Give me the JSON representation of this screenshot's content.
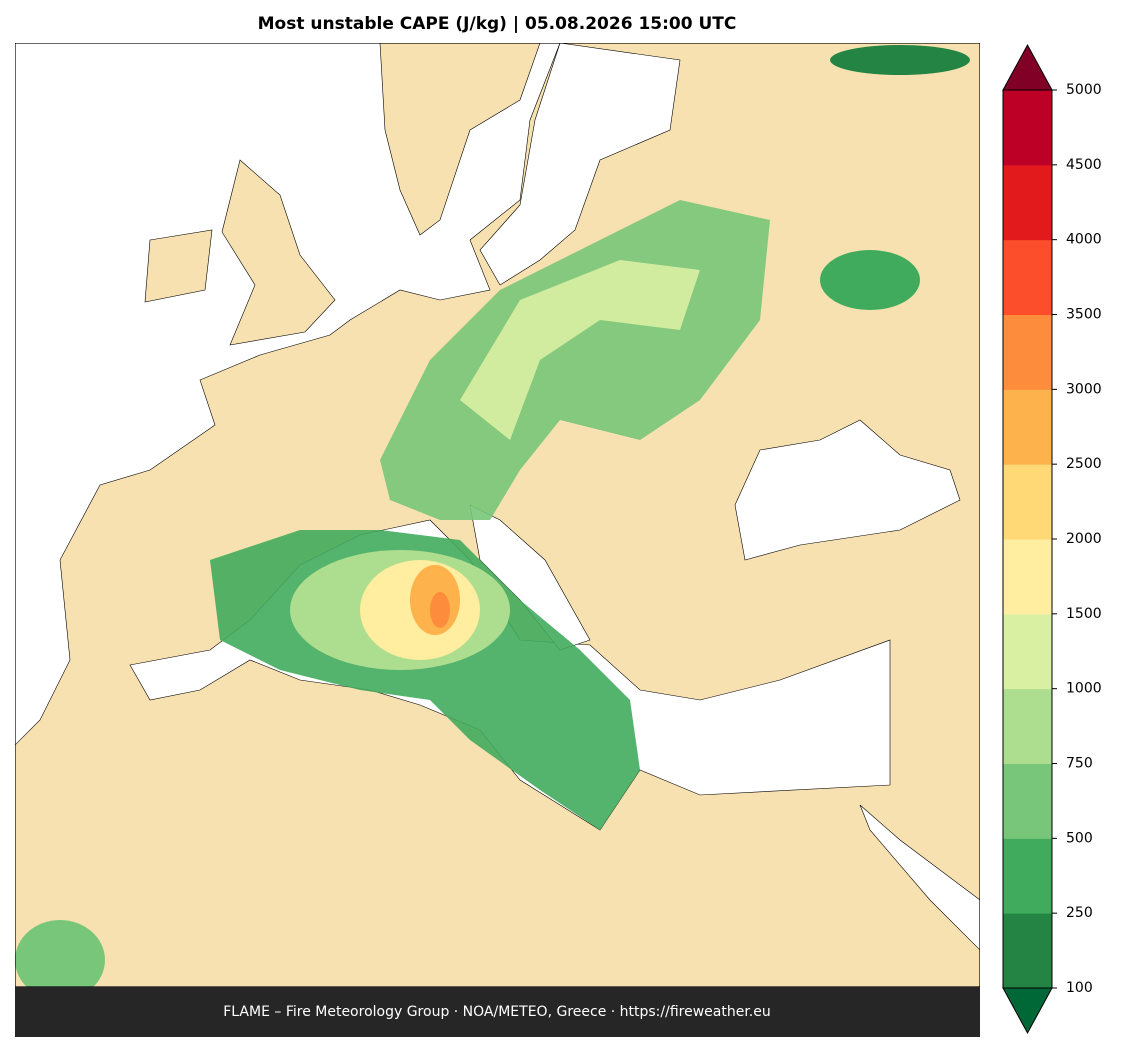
{
  "title": "Most unstable CAPE (J/kg)  |  05.08.2026 15:00 UTC",
  "footer": "FLAME – Fire Meteorology Group · NOA/METEO, Greece · https://fireweather.eu",
  "colorbar": {
    "ticks": [
      100,
      250,
      500,
      750,
      1000,
      1500,
      2000,
      2500,
      3000,
      3500,
      4000,
      4500,
      5000
    ],
    "colors": [
      "#238443",
      "#41ab5d",
      "#78c679",
      "#addd8e",
      "#d9f0a3",
      "#ffeda0",
      "#fed976",
      "#feb24c",
      "#fd8d3c",
      "#fc4e2a",
      "#e31a1c",
      "#bd0026"
    ],
    "under_color": "#006837",
    "over_color": "#800026"
  }
}
